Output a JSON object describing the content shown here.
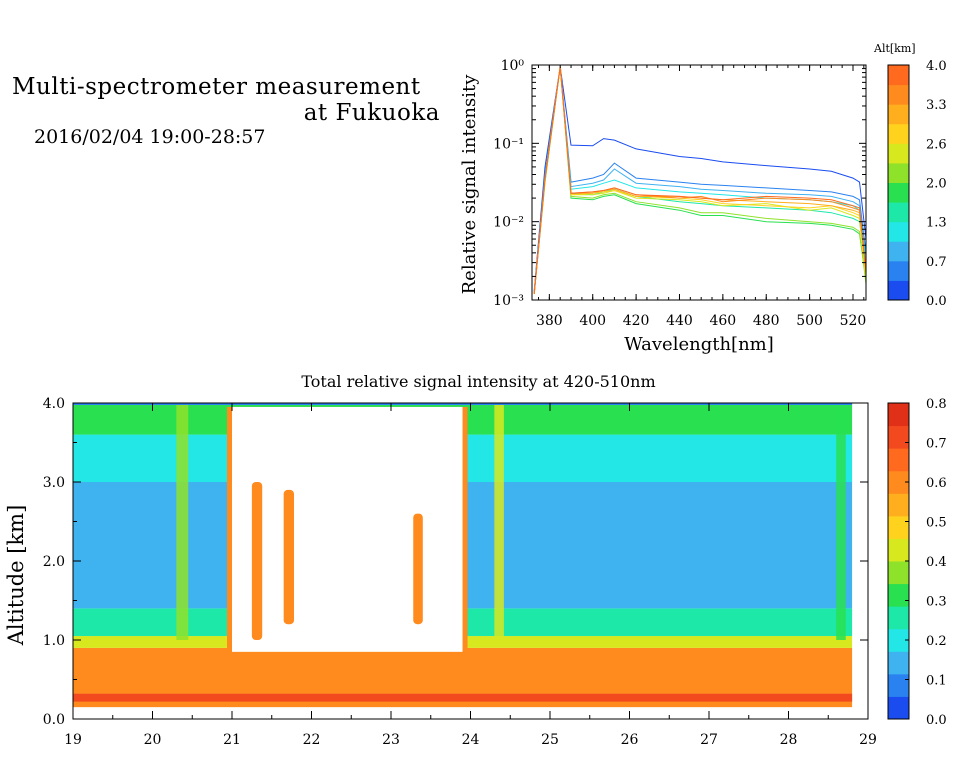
{
  "header": {
    "title_line1": "Multi-spectrometer measurement",
    "title_line2": "at Fukuoka",
    "date_range": "2016/02/04 19:00-28:57"
  },
  "chart_data": [
    {
      "type": "line",
      "xlabel": "Wavelength[nm]",
      "ylabel": "Relative signal intensity",
      "yscale": "log",
      "xlim": [
        372,
        526
      ],
      "ylim": [
        0.001,
        1
      ],
      "x_ticks": [
        "380",
        "400",
        "420",
        "440",
        "460",
        "480",
        "500",
        "520"
      ],
      "y_ticks": [
        "10⁻³",
        "10⁻²",
        "10⁻¹",
        "10⁰"
      ],
      "colorbar_title": "Alt[km]",
      "colorbar_ticks": [
        "0.0",
        "0.7",
        "1.3",
        "2.0",
        "2.6",
        "3.3",
        "4.0"
      ],
      "colorbar_colors": [
        "#1a4cf0",
        "#2a82f0",
        "#3fb2f0",
        "#23e6e6",
        "#1ee8a8",
        "#28e050",
        "#8fe22a",
        "#d8e81e",
        "#ffd21e",
        "#ffae1e",
        "#ff8a1e",
        "#ff6a1e"
      ],
      "grid": false,
      "series": [
        {
          "color": "#1a4cf0",
          "x": [
            373,
            378,
            385,
            390,
            400,
            405,
            410,
            420,
            440,
            450,
            460,
            480,
            500,
            510,
            520,
            523,
            526
          ],
          "y": [
            0.0013,
            0.05,
            0.95,
            0.095,
            0.093,
            0.115,
            0.11,
            0.085,
            0.068,
            0.064,
            0.058,
            0.052,
            0.047,
            0.044,
            0.036,
            0.032,
            0.006
          ]
        },
        {
          "color": "#2a82f0",
          "x": [
            373,
            378,
            385,
            390,
            400,
            405,
            410,
            420,
            440,
            450,
            460,
            480,
            500,
            510,
            520,
            523,
            526
          ],
          "y": [
            0.0012,
            0.04,
            0.95,
            0.032,
            0.036,
            0.04,
            0.056,
            0.036,
            0.032,
            0.03,
            0.029,
            0.027,
            0.025,
            0.024,
            0.021,
            0.019,
            0.004
          ]
        },
        {
          "color": "#3fb2f0",
          "x": [
            373,
            378,
            385,
            390,
            400,
            405,
            410,
            420,
            440,
            450,
            460,
            480,
            500,
            510,
            520,
            523,
            526
          ],
          "y": [
            0.0012,
            0.038,
            0.95,
            0.028,
            0.031,
            0.034,
            0.047,
            0.031,
            0.028,
            0.026,
            0.025,
            0.023,
            0.022,
            0.021,
            0.018,
            0.016,
            0.0035
          ]
        },
        {
          "color": "#23e6e6",
          "x": [
            373,
            378,
            385,
            390,
            400,
            405,
            410,
            420,
            440,
            450,
            460,
            480,
            500,
            510,
            520,
            523,
            526
          ],
          "y": [
            0.0012,
            0.036,
            0.95,
            0.026,
            0.028,
            0.031,
            0.034,
            0.027,
            0.024,
            0.023,
            0.022,
            0.02,
            0.019,
            0.018,
            0.016,
            0.014,
            0.003
          ]
        },
        {
          "color": "#1ee8a8",
          "x": [
            373,
            378,
            385,
            390,
            400,
            405,
            410,
            420,
            440,
            450,
            460,
            480,
            500,
            510,
            520,
            523,
            526
          ],
          "y": [
            0.0012,
            0.034,
            0.95,
            0.023,
            0.022,
            0.024,
            0.026,
            0.021,
            0.018,
            0.017,
            0.016,
            0.015,
            0.014,
            0.013,
            0.011,
            0.01,
            0.0025
          ]
        },
        {
          "color": "#28e050",
          "x": [
            373,
            378,
            385,
            390,
            400,
            405,
            410,
            420,
            440,
            450,
            460,
            480,
            500,
            510,
            520,
            523,
            526
          ],
          "y": [
            0.0012,
            0.032,
            0.95,
            0.02,
            0.019,
            0.021,
            0.022,
            0.017,
            0.014,
            0.012,
            0.012,
            0.01,
            0.0095,
            0.009,
            0.008,
            0.007,
            0.0018
          ]
        },
        {
          "color": "#8fe22a",
          "x": [
            373,
            378,
            385,
            390,
            400,
            405,
            410,
            420,
            440,
            450,
            460,
            480,
            500,
            510,
            520,
            523,
            526
          ],
          "y": [
            0.0012,
            0.032,
            0.95,
            0.021,
            0.02,
            0.022,
            0.023,
            0.018,
            0.015,
            0.013,
            0.013,
            0.011,
            0.01,
            0.0095,
            0.0085,
            0.0075,
            0.0016
          ]
        },
        {
          "color": "#d8e81e",
          "x": [
            373,
            378,
            385,
            390,
            400,
            405,
            410,
            420,
            440,
            450,
            460,
            480,
            500,
            510,
            520,
            523,
            526
          ],
          "y": [
            0.0012,
            0.033,
            0.95,
            0.022,
            0.022,
            0.023,
            0.025,
            0.02,
            0.019,
            0.018,
            0.016,
            0.017,
            0.014,
            0.015,
            0.012,
            0.011,
            0.0018
          ]
        },
        {
          "color": "#ffd21e",
          "x": [
            373,
            378,
            385,
            390,
            400,
            405,
            410,
            420,
            440,
            450,
            460,
            480,
            500,
            510,
            520,
            523,
            526
          ],
          "y": [
            0.0012,
            0.034,
            0.95,
            0.022,
            0.023,
            0.024,
            0.025,
            0.021,
            0.02,
            0.019,
            0.017,
            0.016,
            0.015,
            0.016,
            0.013,
            0.012,
            0.002
          ]
        },
        {
          "color": "#ffae1e",
          "x": [
            373,
            378,
            385,
            390,
            400,
            405,
            410,
            420,
            440,
            450,
            460,
            480,
            500,
            510,
            520,
            523,
            526
          ],
          "y": [
            0.0012,
            0.034,
            0.95,
            0.023,
            0.023,
            0.025,
            0.026,
            0.021,
            0.021,
            0.02,
            0.019,
            0.018,
            0.017,
            0.016,
            0.014,
            0.013,
            0.0022
          ]
        },
        {
          "color": "#ff8a1e",
          "x": [
            373,
            378,
            385,
            390,
            400,
            405,
            410,
            420,
            440,
            450,
            460,
            480,
            500,
            510,
            520,
            523,
            526
          ],
          "y": [
            0.0012,
            0.035,
            0.95,
            0.023,
            0.024,
            0.025,
            0.027,
            0.022,
            0.02,
            0.021,
            0.018,
            0.02,
            0.019,
            0.018,
            0.015,
            0.014,
            0.0022
          ]
        },
        {
          "color": "#ff6a1e",
          "x": [
            373,
            378,
            385,
            390,
            400,
            405,
            410,
            420,
            440,
            450,
            460,
            480,
            500,
            510,
            520,
            523,
            526
          ],
          "y": [
            0.0012,
            0.035,
            0.95,
            0.023,
            0.024,
            0.025,
            0.027,
            0.022,
            0.021,
            0.02,
            0.019,
            0.021,
            0.02,
            0.019,
            0.016,
            0.015,
            0.0024
          ]
        }
      ]
    },
    {
      "type": "heatmap",
      "title": "Total relative signal intensity at 420-510nm",
      "xlabel": "",
      "ylabel": "Altitude [km]",
      "xlim": [
        19,
        29
      ],
      "ylim": [
        0,
        4
      ],
      "x_ticks": [
        "19",
        "20",
        "21",
        "22",
        "23",
        "24",
        "25",
        "26",
        "27",
        "28",
        "29"
      ],
      "y_ticks": [
        "0.0",
        "1.0",
        "2.0",
        "3.0",
        "4.0"
      ],
      "colorbar_ticks": [
        "0.0",
        "0.1",
        "0.2",
        "0.3",
        "0.4",
        "0.5",
        "0.6",
        "0.7",
        "0.8"
      ],
      "colorbar_colors": [
        "#1a4cf0",
        "#2a82f0",
        "#3fb2f0",
        "#23e6e6",
        "#1ee8a8",
        "#28e050",
        "#8fe22a",
        "#d8e81e",
        "#ffd21e",
        "#ffae1e",
        "#ff8a1e",
        "#ff6a1e",
        "#f24a1e",
        "#e03018"
      ],
      "data_x_end": 28.8,
      "layers": [
        {
          "alt_from": 0.15,
          "alt_to": 0.9,
          "value": 0.58
        },
        {
          "alt_from": 0.22,
          "alt_to": 0.32,
          "value": 0.72
        },
        {
          "alt_from": 0.9,
          "alt_to": 1.05,
          "value": 0.42
        },
        {
          "alt_from": 1.05,
          "alt_to": 1.4,
          "value": 0.27
        },
        {
          "alt_from": 1.4,
          "alt_to": 3.0,
          "value": 0.14
        },
        {
          "alt_from": 3.0,
          "alt_to": 3.6,
          "value": 0.22
        },
        {
          "alt_from": 3.6,
          "alt_to": 4.0,
          "value": 0.3
        }
      ],
      "columns": [
        {
          "x_from": 20.3,
          "x_to": 20.45,
          "alt_from": 1.0,
          "alt_to": 4.0,
          "value": 0.35
        },
        {
          "x_from": 21.25,
          "x_to": 21.38,
          "alt_from": 1.0,
          "alt_to": 3.0,
          "value": 0.62
        },
        {
          "x_from": 21.65,
          "x_to": 21.78,
          "alt_from": 1.2,
          "alt_to": 2.9,
          "value": 0.62
        },
        {
          "x_from": 23.28,
          "x_to": 23.4,
          "alt_from": 1.2,
          "alt_to": 2.6,
          "value": 0.62
        },
        {
          "x_from": 24.3,
          "x_to": 24.42,
          "alt_from": 1.0,
          "alt_to": 4.0,
          "value": 0.45
        },
        {
          "x_from": 28.6,
          "x_to": 28.72,
          "alt_from": 1.0,
          "alt_to": 4.0,
          "value": 0.3
        }
      ],
      "blank_regions": [
        {
          "x_from": 21.0,
          "x_to": 23.9,
          "alt_from": 0.85,
          "alt_to": 3.95
        }
      ],
      "blank_edge_value": 0.62,
      "top_line_color": "#2a82f0"
    }
  ]
}
